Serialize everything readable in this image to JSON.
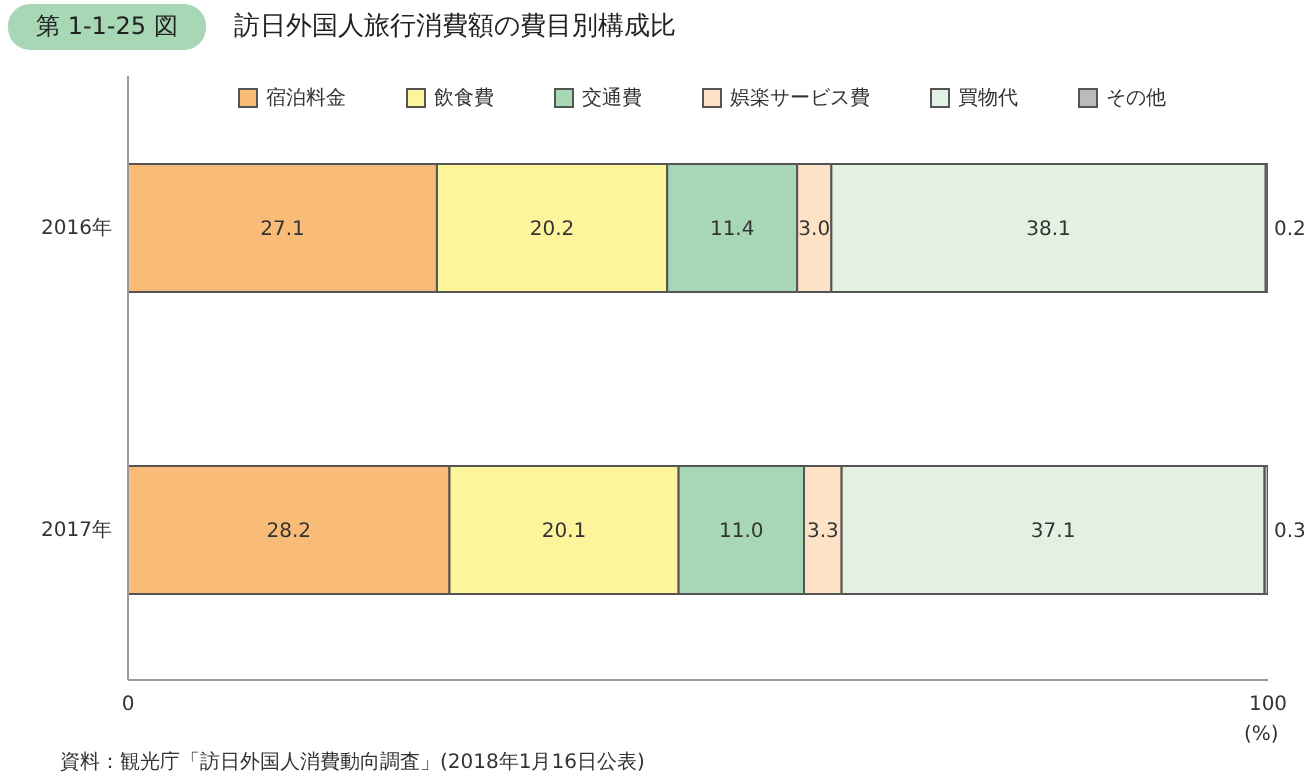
{
  "chart_data": {
    "type": "bar",
    "orientation": "horizontal",
    "stacked": true,
    "subtitle": "第 1-1-25 図",
    "title": "訪日外国人旅行消費額の費目別構成比",
    "categories": [
      "2016年",
      "2017年"
    ],
    "series": [
      {
        "name": "宿泊料金",
        "color": "#f9bb78",
        "values": [
          27.1,
          28.2
        ],
        "value_labels": [
          "27.1",
          "28.2"
        ]
      },
      {
        "name": "飲食費",
        "color": "#fdf59c",
        "values": [
          20.2,
          20.1
        ],
        "value_labels": [
          "20.2",
          "20.1"
        ]
      },
      {
        "name": "交通費",
        "color": "#a7d7b5",
        "values": [
          11.4,
          11.0
        ],
        "value_labels": [
          "11.4",
          "11.0"
        ]
      },
      {
        "name": "娯楽サービス費",
        "color": "#fde2c6",
        "values": [
          3.0,
          3.3
        ],
        "value_labels": [
          "3.0",
          "3.3"
        ]
      },
      {
        "name": "買物代",
        "color": "#e3f1e3",
        "values": [
          38.1,
          37.1
        ],
        "value_labels": [
          "38.1",
          "37.1"
        ]
      },
      {
        "name": "その他",
        "color": "#bbbbbb",
        "values": [
          0.2,
          0.3
        ],
        "value_labels": [
          "0.2",
          "0.3"
        ]
      }
    ],
    "xlim": [
      0,
      100
    ],
    "xticks": [
      0,
      100
    ],
    "xlabel": "(%)",
    "legend": "top",
    "grid": false,
    "annotations": [
      "資料：観光庁「訪日外国人消費動向調査」(2018年1月16日公表)"
    ]
  }
}
